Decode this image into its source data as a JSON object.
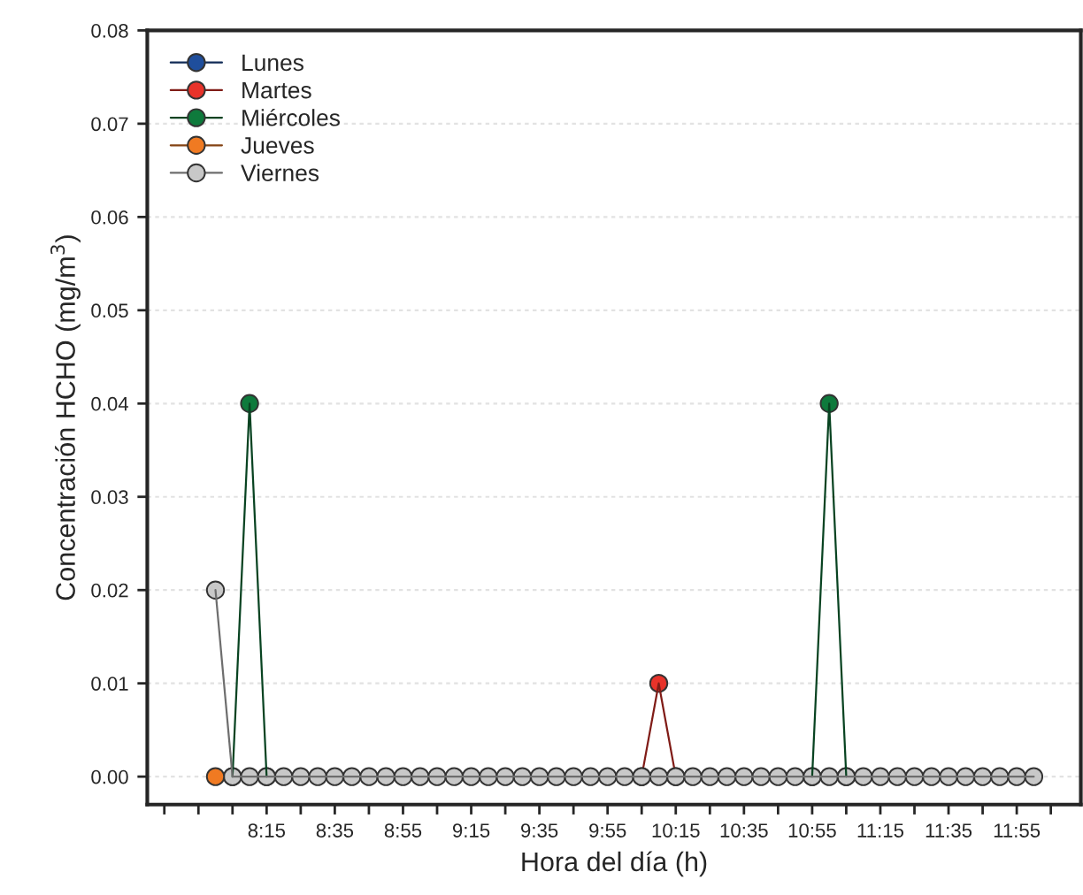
{
  "chart_data": {
    "type": "line",
    "xlabel": "Hora del día (h)",
    "ylabel": "Concentración HCHO (mg/m$^{3}$)",
    "x": [
      8,
      8.0833,
      8.1667,
      8.25,
      8.3333,
      8.4167,
      8.5,
      8.5833,
      8.6667,
      8.75,
      8.8333,
      8.9167,
      9,
      9.0833,
      9.1667,
      9.25,
      9.3333,
      9.4167,
      9.5,
      9.5833,
      9.6667,
      9.75,
      9.8333,
      9.9167,
      10,
      10.0833,
      10.1667,
      10.25,
      10.3333,
      10.4167,
      10.5,
      10.5833,
      10.6667,
      10.75,
      10.8333,
      10.9167,
      11,
      11.0833,
      11.1667,
      11.25,
      11.3333,
      11.4167,
      11.5,
      11.5833,
      11.6667,
      11.75,
      11.8333,
      11.9167,
      12
    ],
    "series": [
      {
        "name": "Lunes",
        "color": "#1f4e9c",
        "values": [
          null,
          null,
          null,
          null,
          null,
          null,
          null,
          null,
          null,
          null,
          null,
          null,
          null,
          null,
          null,
          null,
          null,
          null,
          null,
          null,
          null,
          null,
          null,
          null,
          null,
          null,
          null,
          null,
          null,
          null,
          null,
          null,
          null,
          null,
          null,
          null,
          null,
          null,
          null,
          null,
          null,
          null,
          null,
          null,
          null,
          null,
          null,
          null,
          null
        ]
      },
      {
        "name": "Martes",
        "color": "#e8332a",
        "values": [
          null,
          null,
          null,
          null,
          null,
          null,
          null,
          null,
          null,
          null,
          null,
          null,
          null,
          null,
          null,
          null,
          null,
          null,
          null,
          null,
          null,
          null,
          null,
          null,
          null,
          0,
          0.01,
          0,
          null,
          null,
          null,
          null,
          null,
          null,
          null,
          null,
          null,
          null,
          null,
          null,
          null,
          null,
          null,
          null,
          null,
          null,
          null,
          null,
          null
        ]
      },
      {
        "name": "Miércoles",
        "color": "#0e7a3c",
        "values": [
          null,
          0,
          0.04,
          0,
          null,
          null,
          null,
          null,
          null,
          null,
          null,
          null,
          null,
          null,
          null,
          null,
          null,
          null,
          null,
          null,
          null,
          null,
          null,
          null,
          null,
          null,
          null,
          null,
          null,
          null,
          null,
          null,
          null,
          null,
          null,
          0,
          0.04,
          0,
          null,
          null,
          null,
          null,
          null,
          null,
          null,
          null,
          null,
          null,
          null
        ]
      },
      {
        "name": "Jueves",
        "color": "#f07a22",
        "values": [
          0,
          null,
          null,
          null,
          null,
          null,
          null,
          null,
          null,
          null,
          null,
          null,
          null,
          null,
          null,
          null,
          null,
          null,
          null,
          null,
          null,
          null,
          null,
          null,
          null,
          null,
          null,
          null,
          null,
          null,
          null,
          null,
          null,
          null,
          null,
          null,
          null,
          null,
          null,
          null,
          null,
          null,
          null,
          null,
          null,
          null,
          null,
          null,
          null
        ]
      },
      {
        "name": "Viernes",
        "color": "#c8c8c8",
        "values": [
          0.02,
          0,
          0,
          0,
          0,
          0,
          0,
          0,
          0,
          0,
          0,
          0,
          0,
          0,
          0,
          0,
          0,
          0,
          0,
          0,
          0,
          0,
          0,
          0,
          0,
          0,
          0,
          0,
          0,
          0,
          0,
          0,
          0,
          0,
          0,
          0,
          0,
          0,
          0,
          0,
          0,
          0,
          0,
          0,
          0,
          0,
          0,
          0,
          0
        ]
      }
    ],
    "xlim": [
      7.6667,
      12.23
    ],
    "xticks": [
      {
        "value": 7.75,
        "label": null
      },
      {
        "value": 7.9167,
        "label": null
      },
      {
        "value": 8.0833,
        "label": null
      },
      {
        "value": 8.25,
        "label": "8:15"
      },
      {
        "value": 8.4167,
        "label": null
      },
      {
        "value": 8.5833,
        "label": "8:35"
      },
      {
        "value": 8.75,
        "label": null
      },
      {
        "value": 8.9167,
        "label": "8:55"
      },
      {
        "value": 9.0833,
        "label": null
      },
      {
        "value": 9.25,
        "label": "9:15"
      },
      {
        "value": 9.4167,
        "label": null
      },
      {
        "value": 9.5833,
        "label": "9:35"
      },
      {
        "value": 9.75,
        "label": null
      },
      {
        "value": 9.9167,
        "label": "9:55"
      },
      {
        "value": 10.0833,
        "label": null
      },
      {
        "value": 10.25,
        "label": "10:15"
      },
      {
        "value": 10.4167,
        "label": null
      },
      {
        "value": 10.5833,
        "label": "10:35"
      },
      {
        "value": 10.75,
        "label": null
      },
      {
        "value": 10.9167,
        "label": "10:55"
      },
      {
        "value": 11.0833,
        "label": null
      },
      {
        "value": 11.25,
        "label": "11:15"
      },
      {
        "value": 11.4167,
        "label": null
      },
      {
        "value": 11.5833,
        "label": "11:35"
      },
      {
        "value": 11.75,
        "label": null
      },
      {
        "value": 11.9167,
        "label": "11:55"
      },
      {
        "value": 12.0833,
        "label": null
      }
    ],
    "ylim": [
      -0.003,
      0.08
    ],
    "yticks": [
      {
        "value": 0,
        "label": "0.00"
      },
      {
        "value": 0.01,
        "label": "0.01"
      },
      {
        "value": 0.02,
        "label": "0.02"
      },
      {
        "value": 0.03,
        "label": "0.03"
      },
      {
        "value": 0.04,
        "label": "0.04"
      },
      {
        "value": 0.05,
        "label": "0.05"
      },
      {
        "value": 0.06,
        "label": "0.06"
      },
      {
        "value": 0.07,
        "label": "0.07"
      },
      {
        "value": 0.08,
        "label": "0.08"
      }
    ],
    "grid": "y",
    "legend": "top left",
    "marker": "circle",
    "line_style": "solid"
  }
}
